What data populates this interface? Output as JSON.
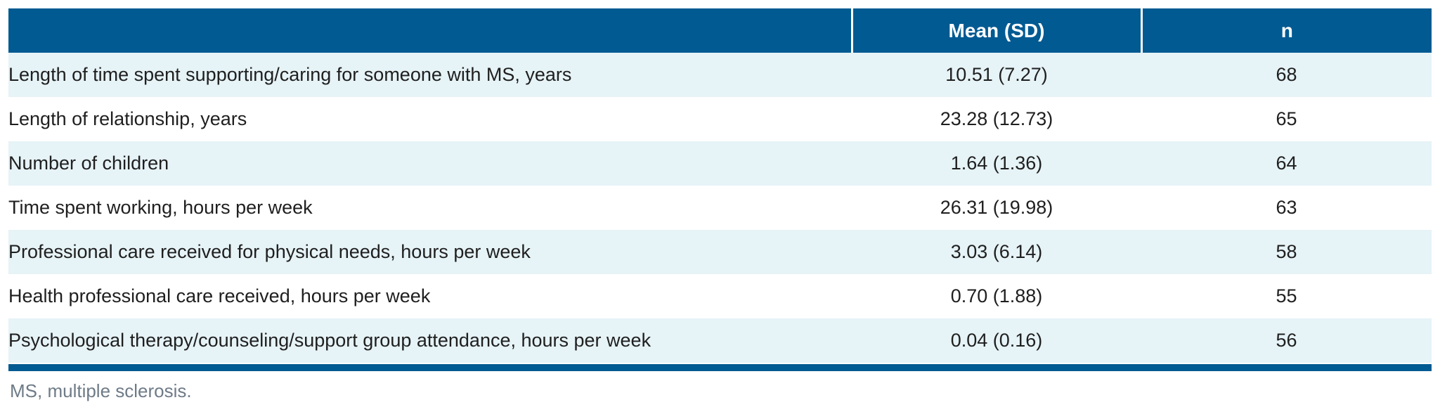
{
  "table": {
    "columns": [
      {
        "label": ""
      },
      {
        "label": "Mean (SD)"
      },
      {
        "label": "n"
      }
    ],
    "rows": [
      {
        "label": "Length of time spent supporting/caring for someone with MS, years",
        "mean_sd": "10.51 (7.27)",
        "n": "68"
      },
      {
        "label": "Length of relationship, years",
        "mean_sd": "23.28 (12.73)",
        "n": "65"
      },
      {
        "label": "Number of children",
        "mean_sd": "1.64 (1.36)",
        "n": "64"
      },
      {
        "label": "Time spent working, hours per week",
        "mean_sd": "26.31 (19.98)",
        "n": "63"
      },
      {
        "label": "Professional care received for physical needs, hours per week",
        "mean_sd": "3.03 (6.14)",
        "n": "58"
      },
      {
        "label": "Health professional care received, hours per week",
        "mean_sd": "0.70 (1.88)",
        "n": "55"
      },
      {
        "label": "Psychological therapy/counseling/support group attendance, hours per week",
        "mean_sd": "0.04 (0.16)",
        "n": "56"
      }
    ],
    "footnote": "MS, multiple sclerosis.",
    "colors": {
      "header_bg": "#025a92",
      "row_alt_bg": "#e6f3f7",
      "row_bg": "#ffffff",
      "bottom_rule": "#025a92",
      "footnote_text": "#6e7b87",
      "body_text": "#1f1f1f",
      "header_text": "#ffffff"
    }
  }
}
